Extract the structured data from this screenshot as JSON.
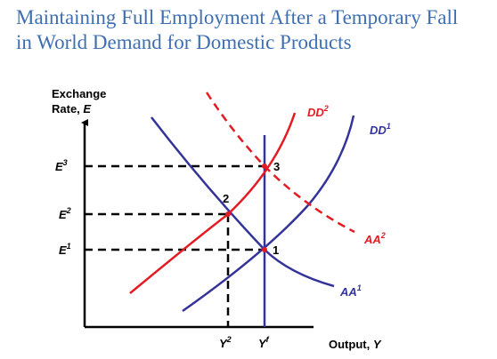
{
  "title": {
    "line1": "Maintaining Full Employment After a Temporary Fall",
    "line2": "in World Demand for Domestic Products"
  },
  "axes": {
    "y_label_line1": "Exchange",
    "y_label_line2_text": "Rate, ",
    "y_label_line2_var": "E",
    "x_label_text": "Output, ",
    "x_label_var": "Y"
  },
  "ticks": {
    "E3": {
      "base": "E",
      "sup": "3"
    },
    "E2": {
      "base": "E",
      "sup": "2"
    },
    "E1": {
      "base": "E",
      "sup": "1"
    },
    "Y2": {
      "base": "Y",
      "sup": "2"
    },
    "Yf": {
      "base": "Y",
      "sup": "f"
    }
  },
  "curves": {
    "DD2": {
      "base": "DD",
      "sup": "2",
      "color": "#e31b23"
    },
    "DD1": {
      "base": "DD",
      "sup": "1",
      "color": "#333399"
    },
    "AA2": {
      "base": "AA",
      "sup": "2",
      "color": "#e31b23"
    },
    "AA1": {
      "base": "AA",
      "sup": "1",
      "color": "#333399"
    }
  },
  "points": {
    "p1": "1",
    "p2": "2",
    "p3": "3"
  },
  "colors": {
    "title": "#3f6fb0",
    "red": "#e31b23",
    "blue": "#333399",
    "black": "#000000"
  }
}
